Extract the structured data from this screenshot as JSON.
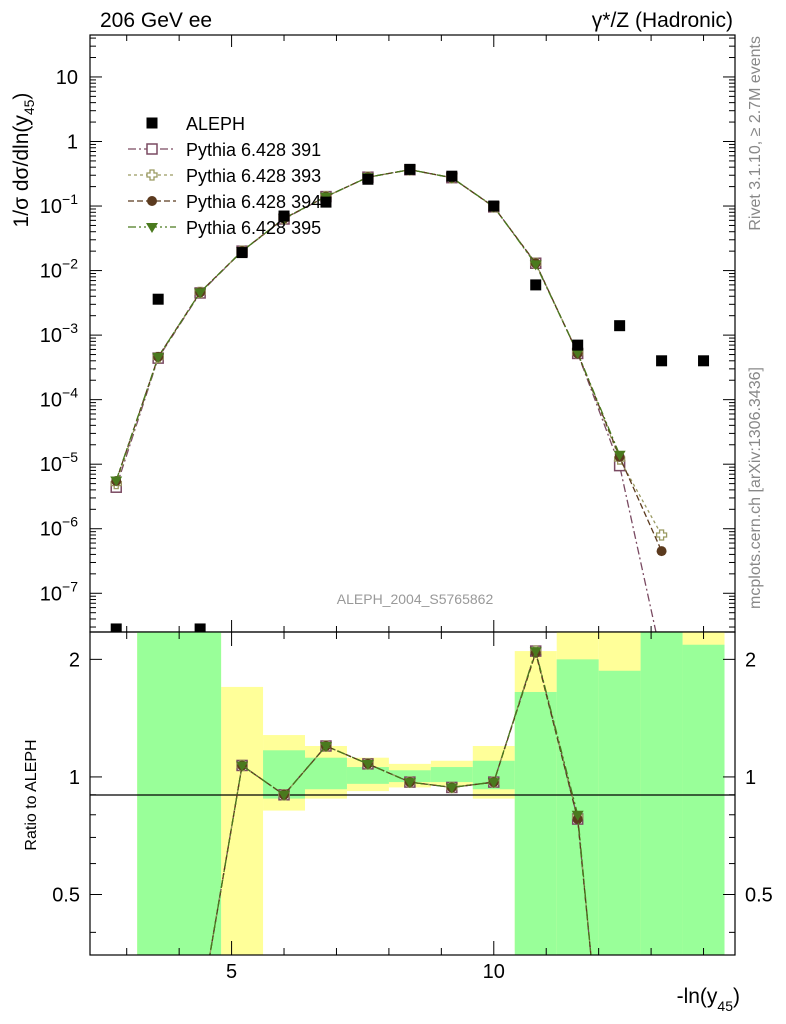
{
  "header": {
    "left": "206 GeV ee",
    "right": "γ*/Z (Hadronic)"
  },
  "side_labels": {
    "rivet": "Rivet 3.1.10, ≥ 2.7M events",
    "mcplots": "mcplots.cern.ch [arXiv:1306.3436]"
  },
  "watermark": "ALEPH_2004_S5765862",
  "colors": {
    "data": "#000000",
    "p391": "#7a4a62",
    "p393": "#9a9a62",
    "p394": "#5b3a1e",
    "p395": "#4a7a1e",
    "band_yellow": "#ffff99",
    "band_green": "#99ff99"
  },
  "chart_data": [
    {
      "type": "scatter",
      "scale": "log",
      "ylabel": "1/σ dσ/dln(y45)",
      "ylabel_parts": {
        "main": "1/σ  dσ/dln(y",
        "sub": "45",
        "close": ")"
      },
      "xlim": [
        2.3,
        14.6
      ],
      "ylim_log10": [
        -7.6,
        1.65
      ],
      "ytick_labels": [
        {
          "p": 1,
          "base": "10",
          "exp": ""
        },
        {
          "p": 0,
          "base": "1",
          "exp": ""
        },
        {
          "p": -1,
          "base": "10",
          "exp": "−1"
        },
        {
          "p": -2,
          "base": "10",
          "exp": "−2"
        },
        {
          "p": -3,
          "base": "10",
          "exp": "−3"
        },
        {
          "p": -4,
          "base": "10",
          "exp": "−4"
        },
        {
          "p": -5,
          "base": "10",
          "exp": "−5"
        },
        {
          "p": -6,
          "base": "10",
          "exp": "−6"
        },
        {
          "p": -7,
          "base": "10",
          "exp": "−7"
        }
      ],
      "data": {
        "name": "ALEPH",
        "x": [
          2.8,
          3.6,
          4.4,
          5.2,
          6.0,
          6.8,
          7.6,
          8.4,
          9.2,
          10.0,
          10.8,
          11.6,
          12.4,
          13.2,
          14.0
        ],
        "y": [
          2.8e-08,
          0.0036,
          2.8e-08,
          0.019,
          0.07,
          0.115,
          0.26,
          0.37,
          0.29,
          0.1,
          0.006,
          0.0007,
          0.0014,
          0.0004,
          0.0004
        ]
      },
      "series": [
        {
          "name": "Pythia 6.428 391",
          "marker": "open-square",
          "colorKey": "p391",
          "x": [
            2.8,
            3.6,
            4.4,
            5.2,
            6.0,
            6.8,
            7.6,
            8.4,
            9.2,
            10.0,
            10.8,
            11.6,
            12.4,
            13.2
          ],
          "y": [
            4.4e-06,
            0.00044,
            0.0045,
            0.02,
            0.063,
            0.14,
            0.28,
            0.365,
            0.275,
            0.097,
            0.013,
            0.00052,
            9.5e-06,
            1e-08
          ]
        },
        {
          "name": "Pythia 6.428 393",
          "marker": "open-cross",
          "colorKey": "p393",
          "x": [
            2.8,
            3.6,
            4.4,
            5.2,
            6.0,
            6.8,
            7.6,
            8.4,
            9.2,
            10.0,
            10.8,
            11.6,
            12.4,
            13.2
          ],
          "y": [
            5e-06,
            0.00045,
            0.0046,
            0.02,
            0.064,
            0.14,
            0.28,
            0.365,
            0.275,
            0.097,
            0.013,
            0.00053,
            1.2e-05,
            8e-07
          ]
        },
        {
          "name": "Pythia 6.428 394",
          "marker": "filled-circle",
          "colorKey": "p394",
          "x": [
            2.8,
            3.6,
            4.4,
            5.2,
            6.0,
            6.8,
            7.6,
            8.4,
            9.2,
            10.0,
            10.8,
            11.6,
            12.4,
            13.2
          ],
          "y": [
            5.5e-06,
            0.00046,
            0.0046,
            0.02,
            0.064,
            0.14,
            0.28,
            0.365,
            0.275,
            0.097,
            0.013,
            0.00052,
            1.3e-05,
            4.5e-07
          ]
        },
        {
          "name": "Pythia 6.428 395",
          "marker": "filled-triangle-down",
          "colorKey": "p395",
          "x": [
            2.8,
            3.6,
            4.4,
            5.2,
            6.0,
            6.8,
            7.6,
            8.4,
            9.2,
            10.0,
            10.8,
            11.6,
            12.4
          ],
          "y": [
            5.6e-06,
            0.00046,
            0.0046,
            0.02,
            0.064,
            0.14,
            0.28,
            0.365,
            0.275,
            0.098,
            0.0125,
            0.00053,
            1.4e-05
          ]
        }
      ],
      "legend": "upper-left"
    },
    {
      "type": "line",
      "scale": "log",
      "ylabel": "Ratio to ALEPH",
      "xlabel": "-ln(y45)",
      "xlabel_parts": {
        "main": "-ln(y",
        "sub": "45",
        "close": ")"
      },
      "xlim": [
        2.3,
        14.6
      ],
      "ylim": [
        0.35,
        2.35
      ],
      "xticks": [
        5,
        10
      ],
      "xtick_labels": [
        "5",
        "10"
      ],
      "yticks": [
        0.5,
        1,
        2
      ],
      "ytick_labels": [
        "0.5",
        "1",
        "2"
      ],
      "bands": {
        "edges": [
          3.2,
          4.8,
          5.6,
          6.4,
          7.2,
          8.0,
          8.8,
          9.6,
          10.4,
          11.2,
          12.0,
          12.8,
          13.6,
          14.4
        ],
        "yellow": [
          [
            0.35,
            2.35
          ],
          [
            0.35,
            1.7
          ],
          [
            0.82,
            1.28
          ],
          [
            0.88,
            1.2
          ],
          [
            0.92,
            1.12
          ],
          [
            0.94,
            1.08
          ],
          [
            0.95,
            1.1
          ],
          [
            0.88,
            1.2
          ],
          [
            0.36,
            2.1
          ],
          [
            0.35,
            2.35
          ],
          [
            0.35,
            2.35
          ],
          [
            0.35,
            2.35
          ],
          [
            0.35,
            2.35
          ]
        ],
        "green": [
          [
            0.35,
            2.35
          ],
          [
            0.35,
            0.35
          ],
          [
            0.88,
            1.17
          ],
          [
            0.93,
            1.12
          ],
          [
            0.96,
            1.06
          ],
          [
            0.97,
            1.04
          ],
          [
            0.97,
            1.06
          ],
          [
            0.93,
            1.1
          ],
          [
            0.35,
            1.65
          ],
          [
            0.35,
            2.0
          ],
          [
            0.35,
            1.87
          ],
          [
            0.35,
            2.35
          ],
          [
            0.35,
            2.18
          ]
        ]
      },
      "ratio_series": [
        {
          "colorKey": "p391",
          "x": [
            4.4,
            5.2,
            6.0,
            6.8,
            7.6,
            8.4,
            9.2,
            10.0,
            10.8,
            11.6,
            11.9
          ],
          "y": [
            0.25,
            1.07,
            0.9,
            1.2,
            1.08,
            0.97,
            0.94,
            0.97,
            2.1,
            0.78,
            0.3
          ]
        },
        {
          "colorKey": "p393",
          "x": [
            4.4,
            5.2,
            6.0,
            6.8,
            7.6,
            8.4,
            9.2,
            10.0,
            10.8,
            11.6,
            11.9
          ],
          "y": [
            0.25,
            1.07,
            0.9,
            1.2,
            1.08,
            0.97,
            0.94,
            0.97,
            2.1,
            0.79,
            0.3
          ]
        },
        {
          "colorKey": "p394",
          "x": [
            4.4,
            5.2,
            6.0,
            6.8,
            7.6,
            8.4,
            9.2,
            10.0,
            10.8,
            11.6,
            11.9
          ],
          "y": [
            0.25,
            1.07,
            0.9,
            1.2,
            1.08,
            0.97,
            0.94,
            0.97,
            2.08,
            0.78,
            0.3
          ]
        },
        {
          "colorKey": "p395",
          "x": [
            4.4,
            5.2,
            6.0,
            6.8,
            7.6,
            8.4,
            9.2,
            10.0,
            10.8,
            11.6,
            11.9
          ],
          "y": [
            0.25,
            1.07,
            0.9,
            1.2,
            1.08,
            0.97,
            0.94,
            0.97,
            2.1,
            0.8,
            0.3
          ]
        }
      ]
    }
  ]
}
